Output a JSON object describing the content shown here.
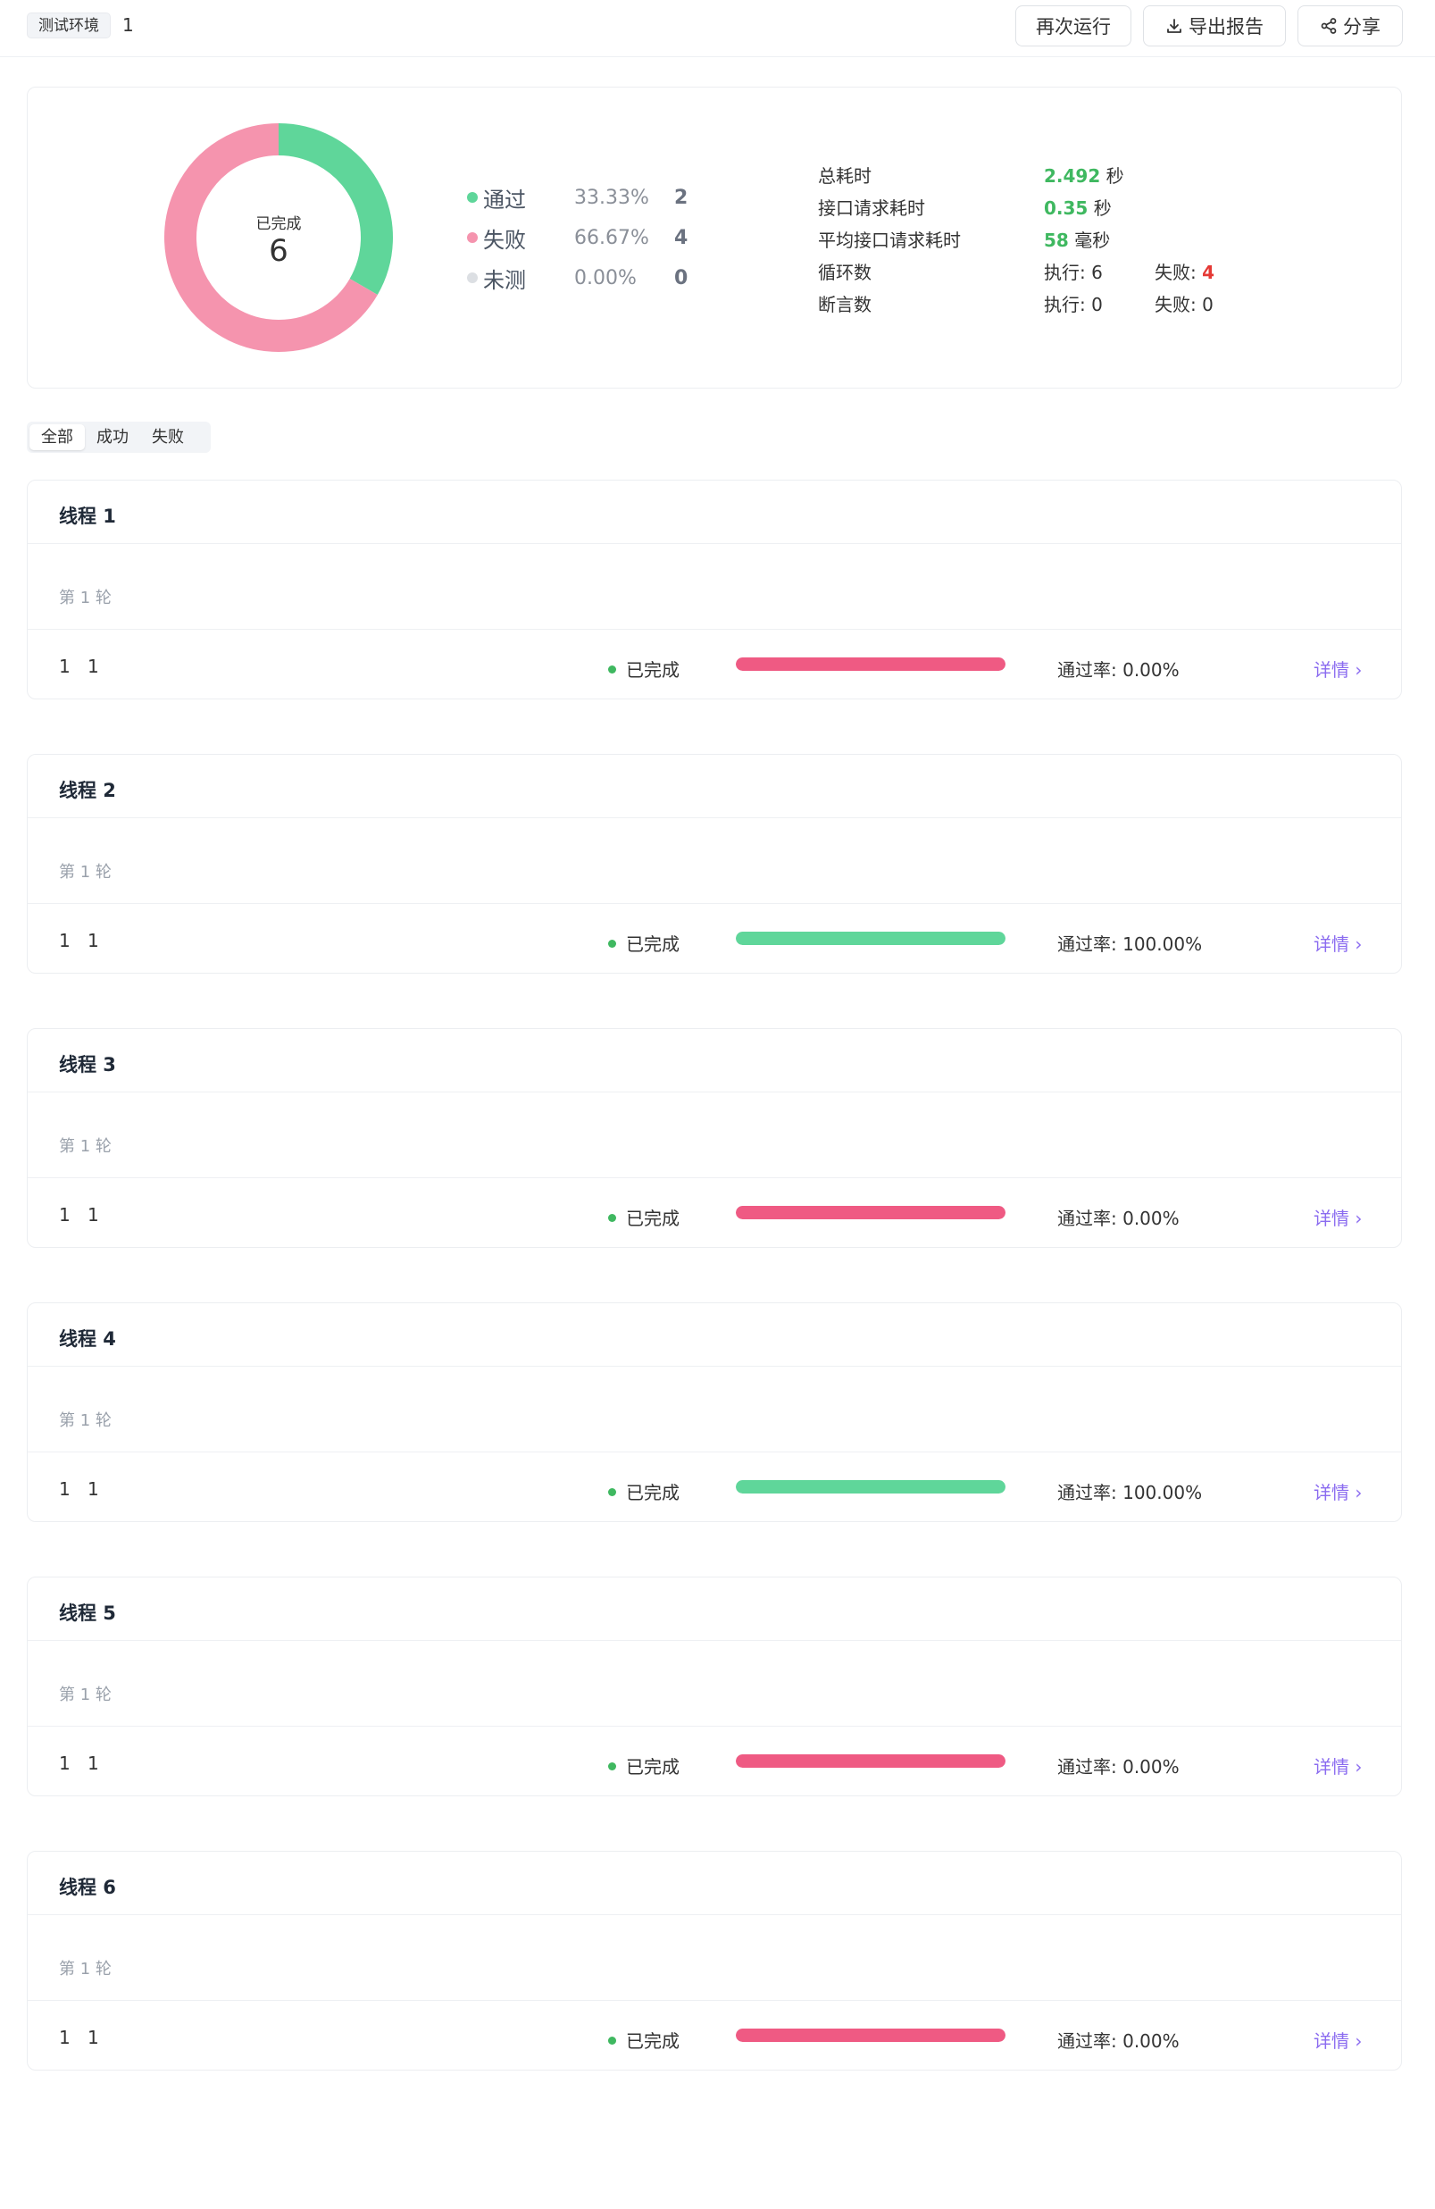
{
  "header": {
    "env_tag": "测试环境",
    "env_value": "1",
    "rerun_label": "再次运行",
    "export_label": "导出报告",
    "share_label": "分享"
  },
  "summary": {
    "center_label": "已完成",
    "center_value": "6",
    "legend": [
      {
        "name": "通过",
        "pct": "33.33%",
        "count": "2",
        "color": "#5fd69a"
      },
      {
        "name": "失败",
        "pct": "66.67%",
        "count": "4",
        "color": "#f594ae"
      },
      {
        "name": "未测",
        "pct": "0.00%",
        "count": "0",
        "color": "#dcdfe3"
      }
    ],
    "stats": {
      "total_time_label": "总耗时",
      "total_time_value": "2.492",
      "total_time_unit": "秒",
      "req_time_label": "接口请求耗时",
      "req_time_value": "0.35",
      "req_time_unit": "秒",
      "avg_time_label": "平均接口请求耗时",
      "avg_time_value": "58",
      "avg_time_unit": "毫秒",
      "loop_label": "循环数",
      "loop_exec": "执行: 6",
      "loop_fail_label": "失败: ",
      "loop_fail_value": "4",
      "assert_label": "断言数",
      "assert_exec": "执行: 0",
      "assert_fail": "失败: 0"
    }
  },
  "tabs": {
    "all": "全部",
    "success": "成功",
    "fail": "失败"
  },
  "colors": {
    "pass": "#5fd69a",
    "fail": "#ef5a83",
    "link": "#8b6cf0"
  },
  "threads": [
    {
      "title": "线程 1",
      "round": "第 1 轮",
      "col_a": "1",
      "col_b": "1",
      "status": "已完成",
      "pass_rate_text": "通过率: 0.00%",
      "pass_rate": 0,
      "detail": "详情 ›"
    },
    {
      "title": "线程 2",
      "round": "第 1 轮",
      "col_a": "1",
      "col_b": "1",
      "status": "已完成",
      "pass_rate_text": "通过率: 100.00%",
      "pass_rate": 100,
      "detail": "详情 ›"
    },
    {
      "title": "线程 3",
      "round": "第 1 轮",
      "col_a": "1",
      "col_b": "1",
      "status": "已完成",
      "pass_rate_text": "通过率: 0.00%",
      "pass_rate": 0,
      "detail": "详情 ›"
    },
    {
      "title": "线程 4",
      "round": "第 1 轮",
      "col_a": "1",
      "col_b": "1",
      "status": "已完成",
      "pass_rate_text": "通过率: 100.00%",
      "pass_rate": 100,
      "detail": "详情 ›"
    },
    {
      "title": "线程 5",
      "round": "第 1 轮",
      "col_a": "1",
      "col_b": "1",
      "status": "已完成",
      "pass_rate_text": "通过率: 0.00%",
      "pass_rate": 0,
      "detail": "详情 ›"
    },
    {
      "title": "线程 6",
      "round": "第 1 轮",
      "col_a": "1",
      "col_b": "1",
      "status": "已完成",
      "pass_rate_text": "通过率: 0.00%",
      "pass_rate": 0,
      "detail": "详情 ›"
    }
  ]
}
